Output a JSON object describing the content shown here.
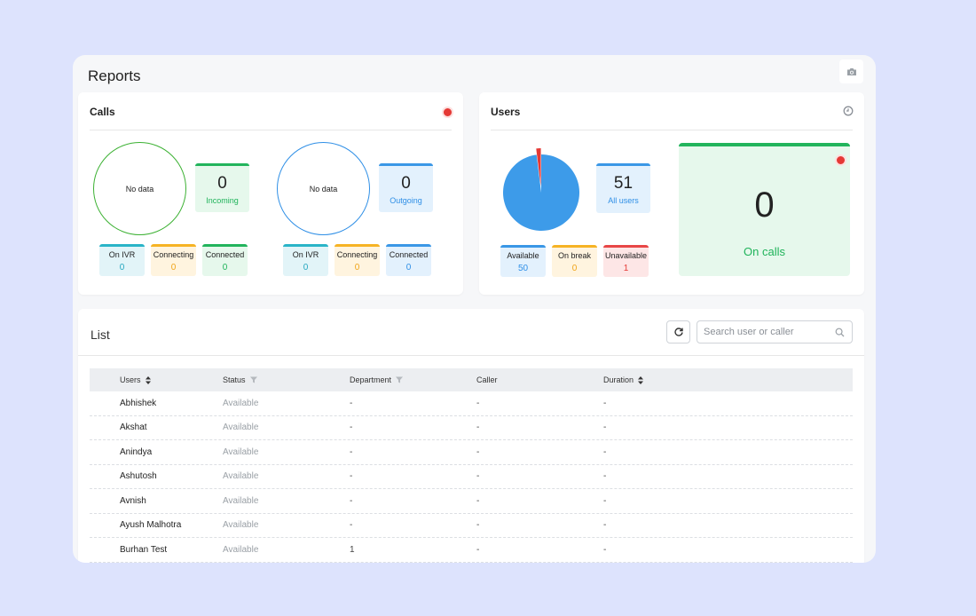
{
  "page": {
    "title": "Reports"
  },
  "calls": {
    "title": "Calls",
    "incoming_group": {
      "ring_text": "No data",
      "tile": {
        "value": "0",
        "label": "Incoming"
      },
      "minis": [
        {
          "label": "On IVR",
          "value": "0"
        },
        {
          "label": "Connecting",
          "value": "0"
        },
        {
          "label": "Connected",
          "value": "0"
        }
      ]
    },
    "outgoing_group": {
      "ring_text": "No data",
      "tile": {
        "value": "0",
        "label": "Outgoing"
      },
      "minis": [
        {
          "label": "On IVR",
          "value": "0"
        },
        {
          "label": "Connecting",
          "value": "0"
        },
        {
          "label": "Connected",
          "value": "0"
        }
      ]
    }
  },
  "users": {
    "title": "Users",
    "pie": {
      "available": 50,
      "on_break": 0,
      "unavailable": 1,
      "colors": {
        "available": "#3d9be9",
        "unavailable": "#e53935"
      }
    },
    "all_tile": {
      "value": "51",
      "label": "All users"
    },
    "minis": [
      {
        "label": "Available",
        "value": "50"
      },
      {
        "label": "On break",
        "value": "0"
      },
      {
        "label": "Unavailable",
        "value": "1"
      }
    ],
    "on_calls": {
      "value": "0",
      "label": "On calls"
    }
  },
  "list": {
    "title": "List",
    "search_placeholder": "Search user or caller",
    "columns": {
      "users": "Users",
      "status": "Status",
      "department": "Department",
      "caller": "Caller",
      "duration": "Duration"
    },
    "rows": [
      {
        "user": "Abhishek",
        "status": "Available",
        "department": "-",
        "caller": "-",
        "duration": "-"
      },
      {
        "user": "Akshat",
        "status": "Available",
        "department": "-",
        "caller": "-",
        "duration": "-"
      },
      {
        "user": "Anindya",
        "status": "Available",
        "department": "-",
        "caller": "-",
        "duration": "-"
      },
      {
        "user": "Ashutosh",
        "status": "Available",
        "department": "-",
        "caller": "-",
        "duration": "-"
      },
      {
        "user": "Avnish",
        "status": "Available",
        "department": "-",
        "caller": "-",
        "duration": "-"
      },
      {
        "user": "Ayush Malhotra",
        "status": "Available",
        "department": "-",
        "caller": "-",
        "duration": "-"
      },
      {
        "user": "Burhan Test",
        "status": "Available",
        "department": "1",
        "caller": "-",
        "duration": "-"
      }
    ]
  },
  "colors": {
    "green": "#22b45c",
    "blue": "#3a97e6",
    "teal": "#2ab4c8",
    "orange": "#f6b324",
    "red": "#e84646",
    "background": "#dde3fd"
  }
}
